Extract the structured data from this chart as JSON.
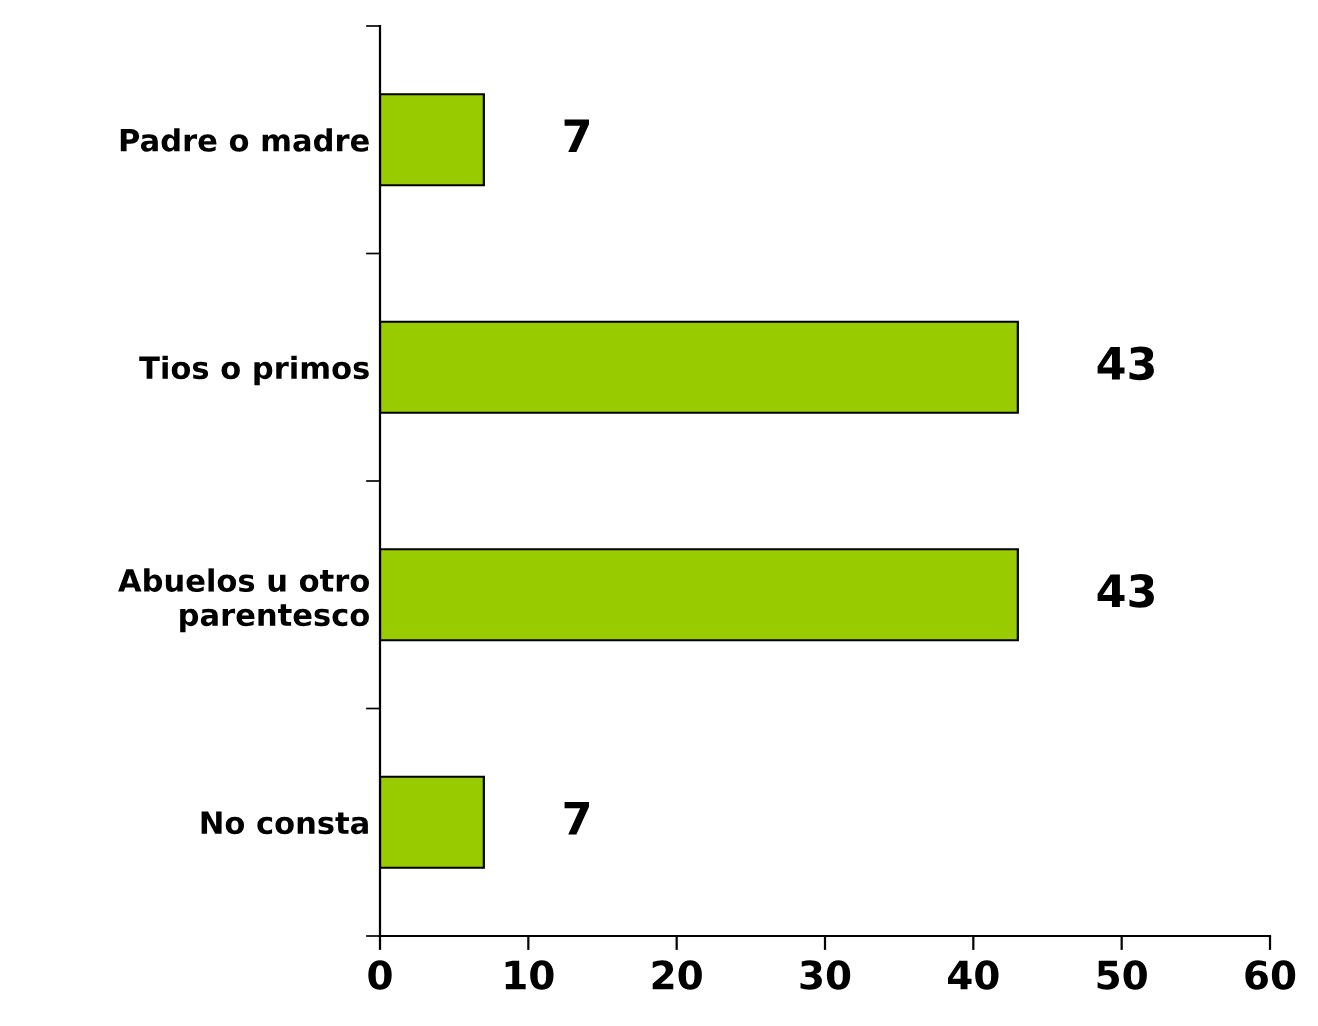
{
  "chart_data": {
    "type": "bar",
    "orientation": "horizontal",
    "categories": [
      "Padre o madre",
      "Tios o primos",
      "Abuelos u otro\nparentesco",
      "No consta"
    ],
    "values": [
      7,
      43,
      43,
      7
    ],
    "color": "#99cc00",
    "xlim": [
      0,
      60
    ],
    "xticks": [
      0,
      10,
      20,
      30,
      40,
      50,
      60
    ],
    "data_labels": true,
    "grid": false,
    "legend": false
  }
}
